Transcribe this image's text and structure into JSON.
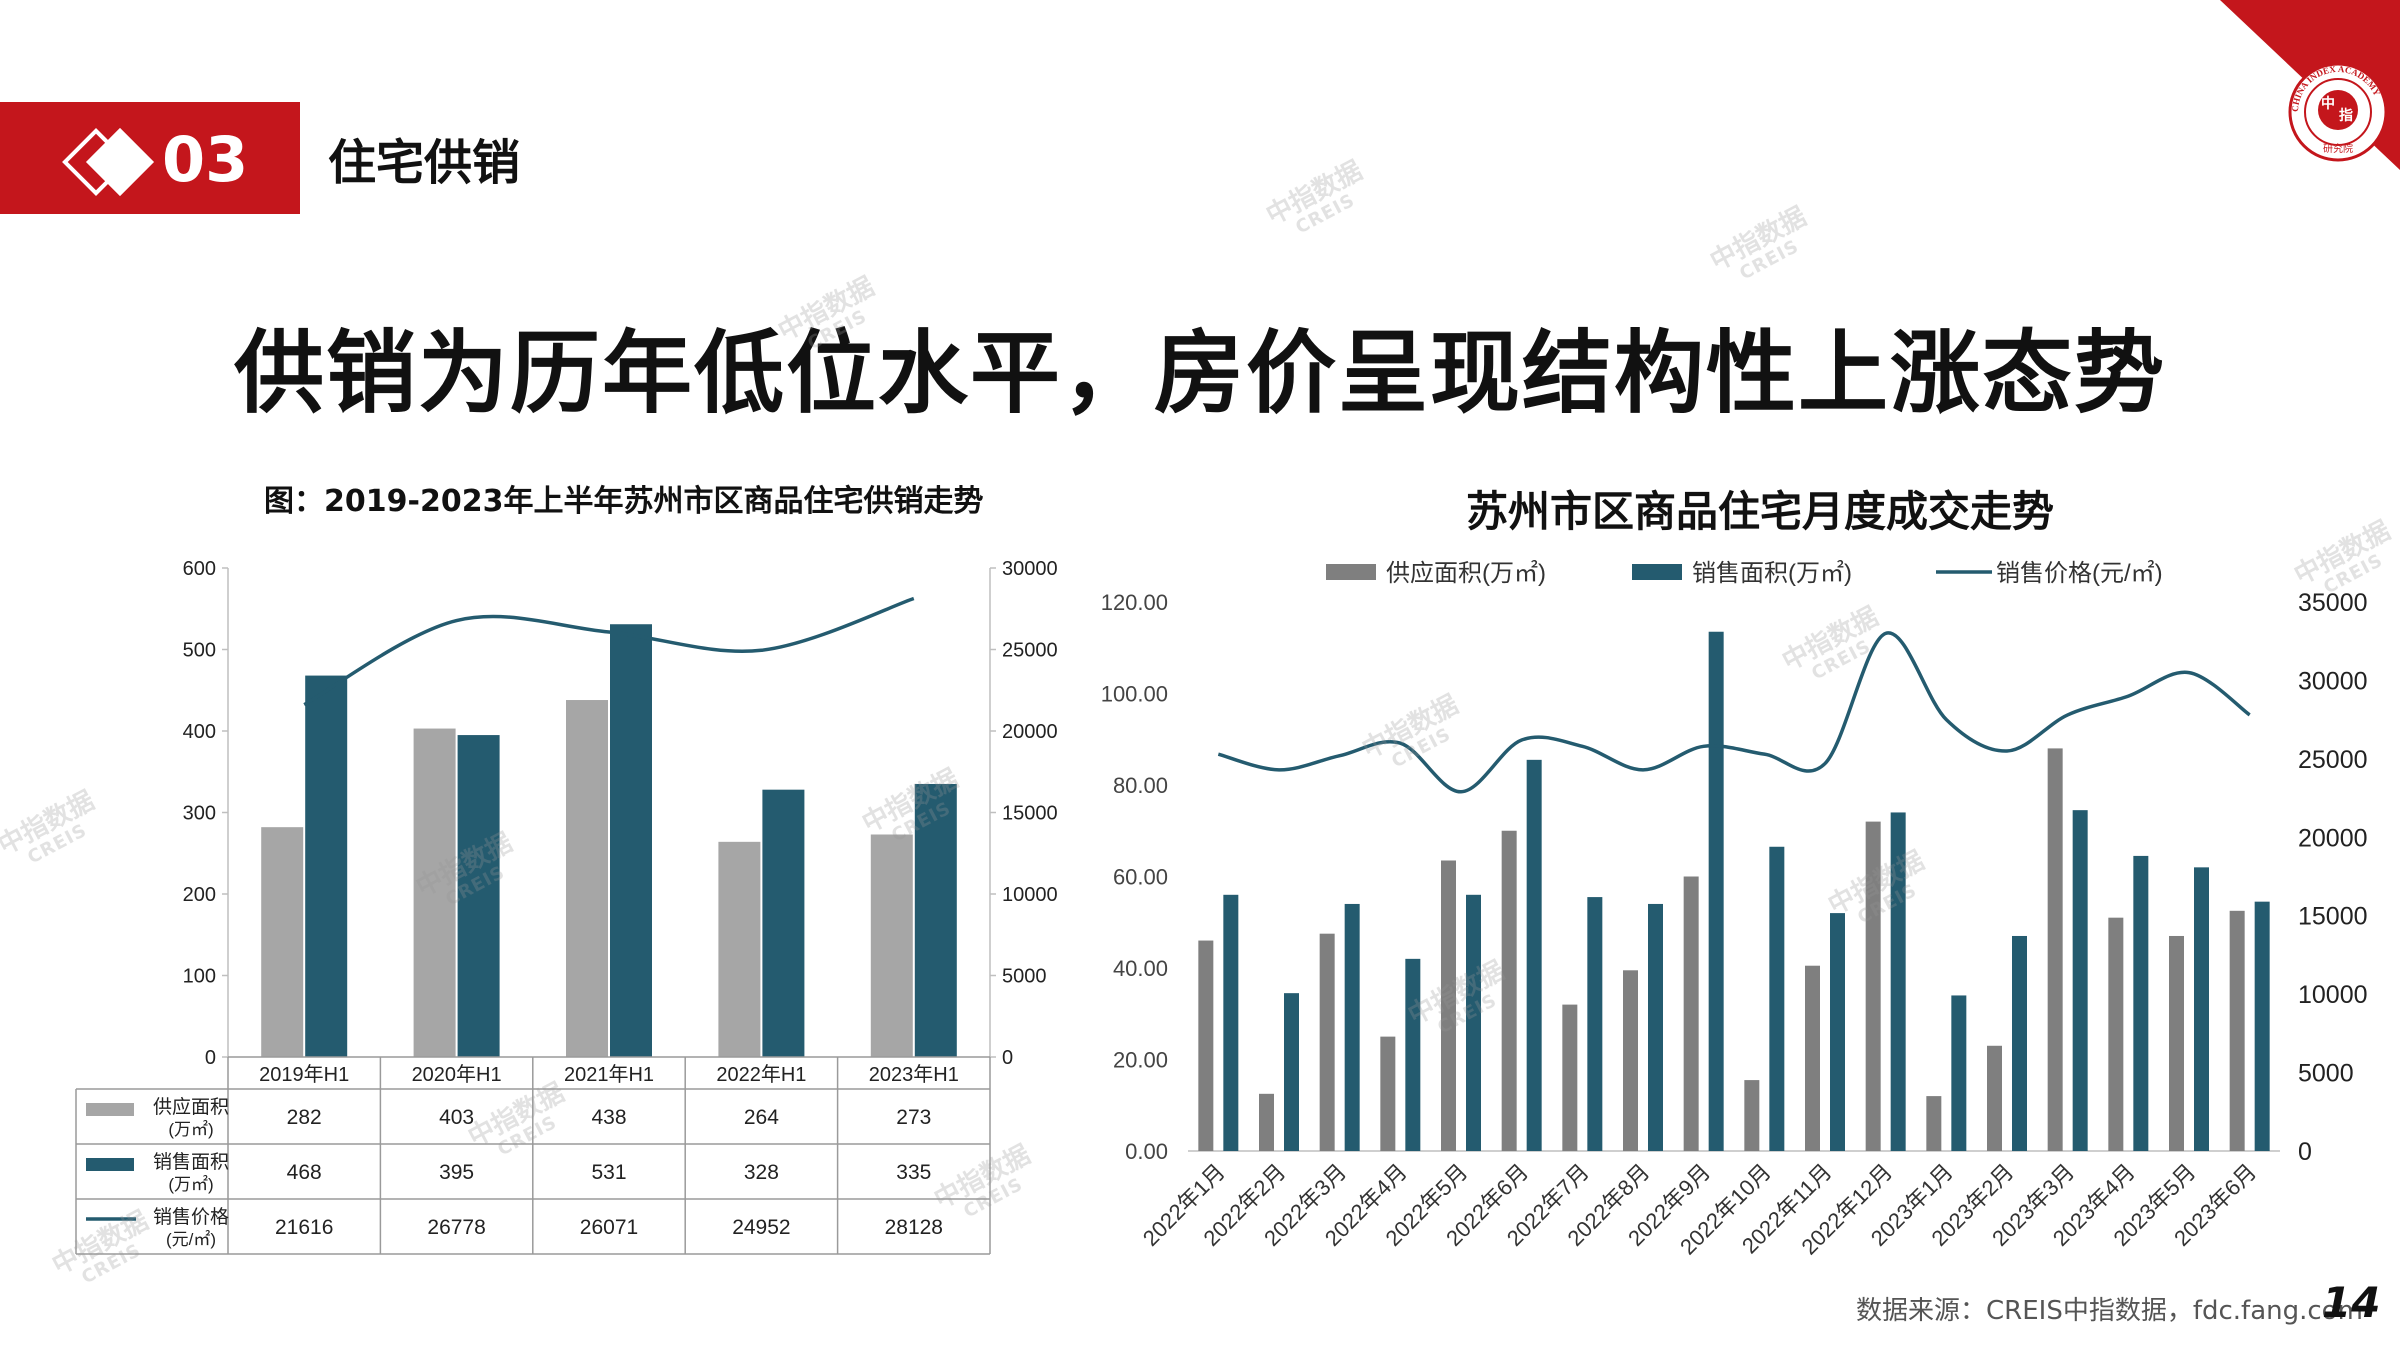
{
  "header": {
    "section_number": "03",
    "section_title": "住宅供销",
    "logo_text": "CHINA INDEX ACADEMY",
    "logo_char1": "中",
    "logo_char2": "指",
    "logo_sub": "研究院"
  },
  "main_title": "供销为历年低位水平，房价呈现结构性上涨态势",
  "watermark": {
    "cn": "中指数据",
    "en": "CREIS"
  },
  "footer": {
    "source": "数据来源：CREIS中指数据，fdc.fang.com",
    "page_number": "14"
  },
  "colors": {
    "brand_red": "#c4161c",
    "supply_left": "#a6a6a6",
    "supply_right": "#7f7f7f",
    "sales": "#245b6f",
    "price_line": "#245b6f"
  },
  "chart_data": [
    {
      "type": "bar",
      "title": "图：2019-2023年上半年苏州市区商品住宅供销走势",
      "categories": [
        "2019年H1",
        "2020年H1",
        "2021年H1",
        "2022年H1",
        "2023年H1"
      ],
      "series": [
        {
          "name": "供应面积",
          "unit": "(万㎡)",
          "kind": "bar",
          "axis": "left",
          "values": [
            282,
            403,
            438,
            264,
            273
          ]
        },
        {
          "name": "销售面积",
          "unit": "(万㎡)",
          "kind": "bar",
          "axis": "left",
          "values": [
            468,
            395,
            531,
            328,
            335
          ]
        },
        {
          "name": "销售价格",
          "unit": "(元/㎡)",
          "kind": "line",
          "axis": "right",
          "values": [
            21616,
            26778,
            26071,
            24952,
            28128
          ]
        }
      ],
      "ylim": [
        0,
        600
      ],
      "yticks": [
        "0",
        "100",
        "200",
        "300",
        "400",
        "500",
        "600"
      ],
      "y2lim": [
        0,
        30000
      ],
      "y2ticks": [
        "0",
        "5000",
        "10000",
        "15000",
        "20000",
        "25000",
        "30000"
      ],
      "data_table": true
    },
    {
      "type": "bar",
      "title": "苏州市区商品住宅月度成交走势",
      "categories": [
        "2022年1月",
        "2022年2月",
        "2022年3月",
        "2022年4月",
        "2022年5月",
        "2022年6月",
        "2022年7月",
        "2022年8月",
        "2022年9月",
        "2022年10月",
        "2022年11月",
        "2022年12月",
        "2023年1月",
        "2023年2月",
        "2023年3月",
        "2023年4月",
        "2023年5月",
        "2023年6月"
      ],
      "series": [
        {
          "name": "供应面积(万㎡)",
          "kind": "bar",
          "axis": "left",
          "values": [
            46,
            12.5,
            47.5,
            25,
            63.5,
            70,
            32,
            39.5,
            60,
            15.5,
            40.5,
            72,
            12,
            23,
            88,
            51,
            47,
            52.5
          ]
        },
        {
          "name": "销售面积(万㎡)",
          "kind": "bar",
          "axis": "left",
          "values": [
            56,
            34.5,
            54,
            42,
            56,
            85.5,
            55.5,
            54,
            113.5,
            66.5,
            52,
            74,
            34,
            47,
            74.5,
            64.5,
            62,
            54.5
          ]
        },
        {
          "name": "销售价格(元/㎡)",
          "kind": "line",
          "axis": "right",
          "values": [
            25300,
            24300,
            25200,
            26000,
            22900,
            26200,
            25800,
            24300,
            25800,
            25300,
            24700,
            33000,
            27500,
            25500,
            27800,
            29000,
            30500,
            27800
          ]
        }
      ],
      "ylim": [
        0,
        120
      ],
      "yticks": [
        "0.00",
        "20.00",
        "40.00",
        "60.00",
        "80.00",
        "100.00",
        "120.00"
      ],
      "y2lim": [
        0,
        35000
      ],
      "y2ticks": [
        "0",
        "5000",
        "10000",
        "15000",
        "20000",
        "25000",
        "30000",
        "35000"
      ],
      "legend": "top"
    }
  ]
}
